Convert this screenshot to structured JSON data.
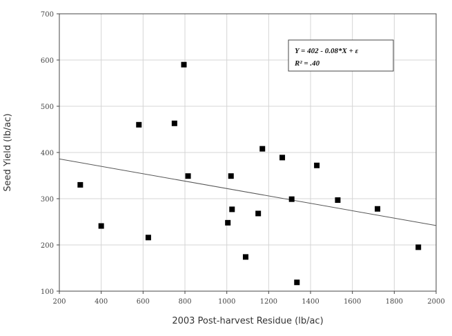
{
  "chart_data": {
    "type": "scatter",
    "xlabel": "2003 Post-harvest Residue (lb/ac)",
    "ylabel": "Seed Yield (lb/ac)",
    "xlim": [
      200,
      2000
    ],
    "ylim": [
      100,
      700
    ],
    "xticks": [
      "200",
      "400",
      "600",
      "800",
      "1000",
      "1200",
      "1400",
      "1600",
      "1800",
      "2000"
    ],
    "yticks": [
      "100",
      "200",
      "300",
      "400",
      "500",
      "600",
      "700"
    ],
    "grid": true,
    "series": [
      {
        "points": [
          {
            "x": 300,
            "y": 330
          },
          {
            "x": 400,
            "y": 241
          },
          {
            "x": 580,
            "y": 460
          },
          {
            "x": 625,
            "y": 216
          },
          {
            "x": 750,
            "y": 463
          },
          {
            "x": 795,
            "y": 590
          },
          {
            "x": 815,
            "y": 349
          },
          {
            "x": 1005,
            "y": 248
          },
          {
            "x": 1020,
            "y": 349
          },
          {
            "x": 1025,
            "y": 277
          },
          {
            "x": 1090,
            "y": 174
          },
          {
            "x": 1150,
            "y": 268
          },
          {
            "x": 1170,
            "y": 408
          },
          {
            "x": 1265,
            "y": 389
          },
          {
            "x": 1310,
            "y": 299
          },
          {
            "x": 1335,
            "y": 119
          },
          {
            "x": 1430,
            "y": 372
          },
          {
            "x": 1530,
            "y": 297
          },
          {
            "x": 1720,
            "y": 278
          },
          {
            "x": 1915,
            "y": 195
          }
        ]
      }
    ],
    "regression": {
      "intercept": 402,
      "slope": -0.08
    },
    "annotation": {
      "line1": "Y = 402 - 0.08*X + ε",
      "line2": "R² = .40"
    },
    "point_color": "#000000",
    "line_color": "#555555",
    "grid_color": "#d4d4d4"
  }
}
